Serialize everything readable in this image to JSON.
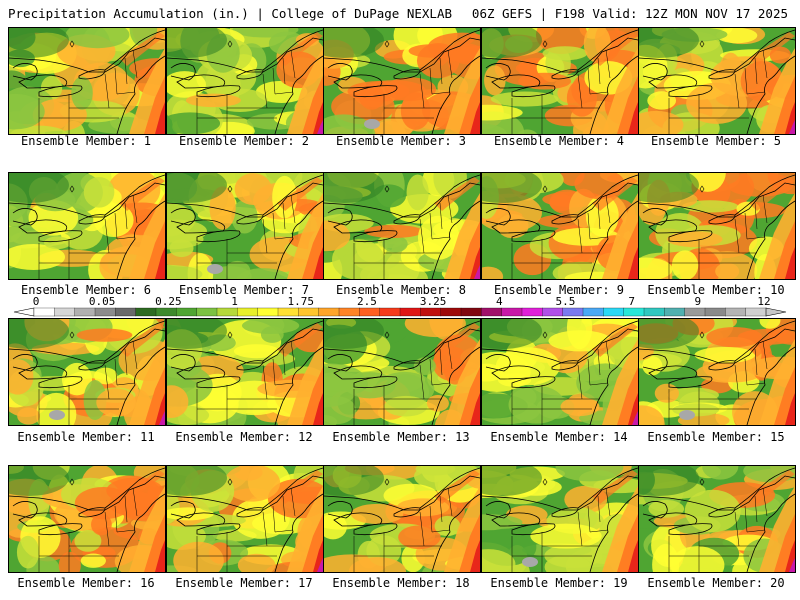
{
  "header": {
    "title_left": "Precipitation Accumulation (in.) | College of DuPage NEXLAB",
    "title_right": "06Z GEFS | F198 Valid: 12Z MON NOV 17 2025"
  },
  "caption_prefix": "Ensemble Member: ",
  "members": [
    1,
    2,
    3,
    4,
    5,
    6,
    7,
    8,
    9,
    10,
    11,
    12,
    13,
    14,
    15,
    16,
    17,
    18,
    19,
    20
  ],
  "colorbar": {
    "tick_labels": [
      "0",
      "0.05",
      "0.25",
      "1",
      "1.75",
      "2.5",
      "3.25",
      "4",
      "5.5",
      "7",
      "9",
      "12"
    ],
    "colors": [
      "#ffffff",
      "#d6d6d6",
      "#b0b0b0",
      "#8c8c8c",
      "#6a6a6a",
      "#2e6b22",
      "#3d8a2d",
      "#4fa532",
      "#7cc242",
      "#b5d93a",
      "#e8f02a",
      "#ffff33",
      "#ffe033",
      "#ffc52e",
      "#ffa52a",
      "#ff8426",
      "#ff6020",
      "#f53a1b",
      "#e01515",
      "#c00f0f",
      "#9e0a0a",
      "#800810",
      "#a0106a",
      "#c818a8",
      "#e020d8",
      "#b050e8",
      "#7a7af0",
      "#4aa8f5",
      "#2ad8f5",
      "#28e6d8",
      "#30c8c0",
      "#50b0b0",
      "#9a9a9a",
      "#8a8a8a",
      "#b4b4b4",
      "#d0d0d0"
    ]
  },
  "palette": {
    "green_dark": "#2f7d24",
    "green": "#4fa532",
    "green_light": "#8cc63f",
    "yellow_green": "#c8e03a",
    "yellow": "#ffff33",
    "orange": "#ffb030",
    "orange_dark": "#ff7a22",
    "red": "#e8261a",
    "magenta": "#c818a8",
    "gray": "#a8a8a8"
  }
}
